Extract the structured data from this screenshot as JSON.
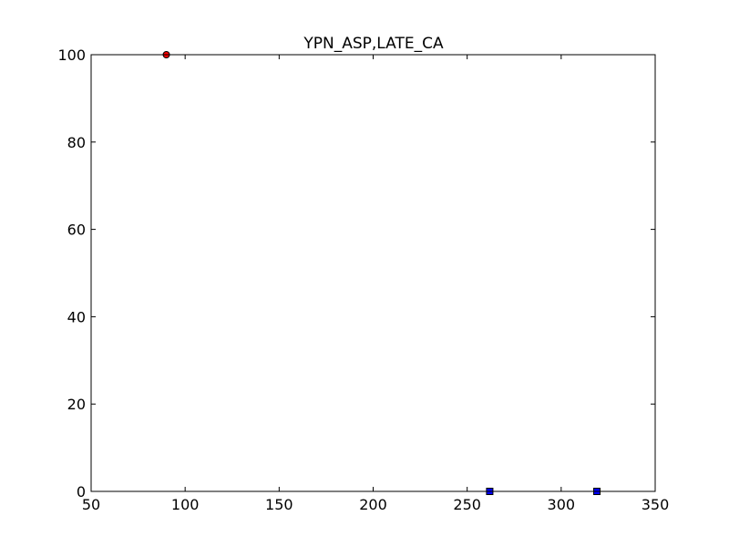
{
  "chart_data": {
    "type": "scatter",
    "title": "YPN_ASP,LATE_CA",
    "xlabel": "",
    "ylabel": "",
    "xlim": [
      50,
      350
    ],
    "ylim": [
      0,
      100
    ],
    "xticks": [
      50,
      100,
      150,
      200,
      250,
      300,
      350
    ],
    "yticks": [
      0,
      20,
      40,
      60,
      80,
      100
    ],
    "grid": false,
    "series": [
      {
        "marker": "circle",
        "color": "#ff0000",
        "points": [
          {
            "x": 90,
            "y": 100
          }
        ]
      },
      {
        "marker": "square",
        "color": "#0000ff",
        "points": [
          {
            "x": 262,
            "y": 0
          },
          {
            "x": 319,
            "y": 0
          }
        ]
      }
    ]
  }
}
